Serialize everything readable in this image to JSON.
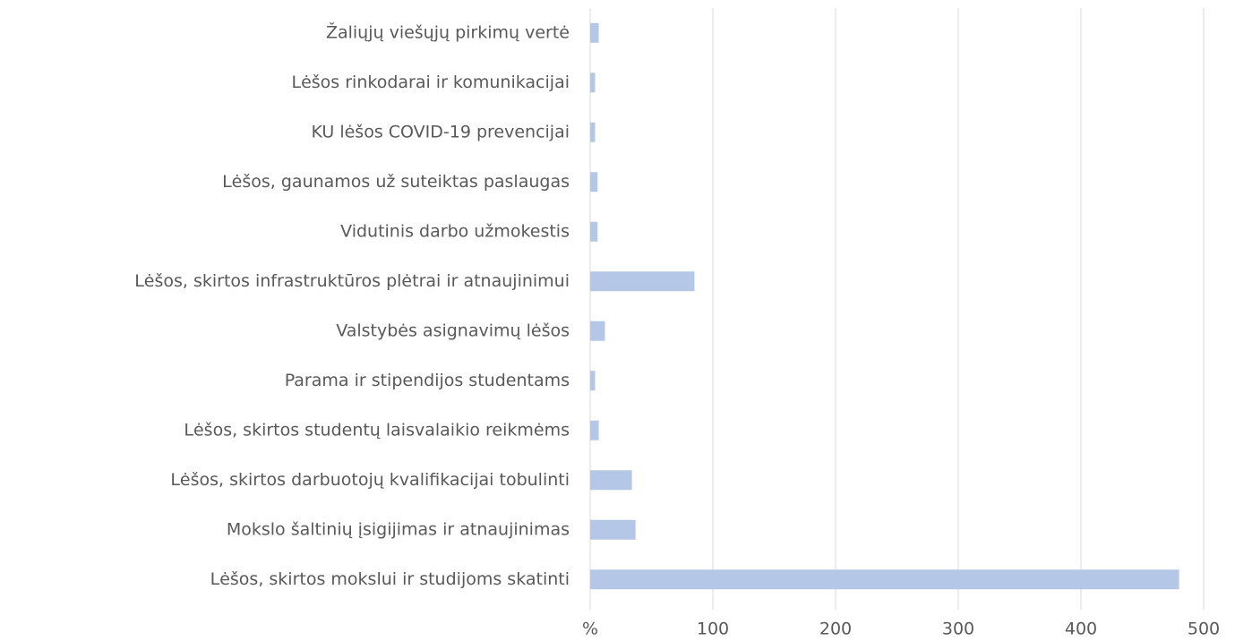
{
  "chart_data": {
    "type": "hbar",
    "categories": [
      "Žaliųjų viešųjų pirkimų vertė",
      "Lėšos rinkodarai ir komunikacijai",
      "KU lėšos COVID-19 prevencijai",
      "Lėšos, gaunamos už suteiktas paslaugas",
      "Vidutinis darbo užmokestis",
      "Lėšos, skirtos infrastruktūros plėtrai ir atnaujinimui",
      "Valstybės asignavimų lėšos",
      "Parama ir stipendijos studentams",
      "Lėšos, skirtos studentų laisvalaikio reikmėms",
      "Lėšos, skirtos darbuotojų kvalifikacijai tobulinti",
      "Mokslo šaltinių įsigijimas ir atnaujinimas",
      "Lėšos, skirtos mokslui ir studijoms skatinti"
    ],
    "values": [
      7,
      4,
      4,
      6,
      6,
      85,
      12,
      4,
      7,
      34,
      37,
      480
    ],
    "color": "#b4c7e7",
    "xlim": [
      0,
      500
    ],
    "xticks": [
      {
        "value": 0,
        "label": "%"
      },
      100,
      200,
      300,
      400,
      500
    ],
    "grid": true
  }
}
